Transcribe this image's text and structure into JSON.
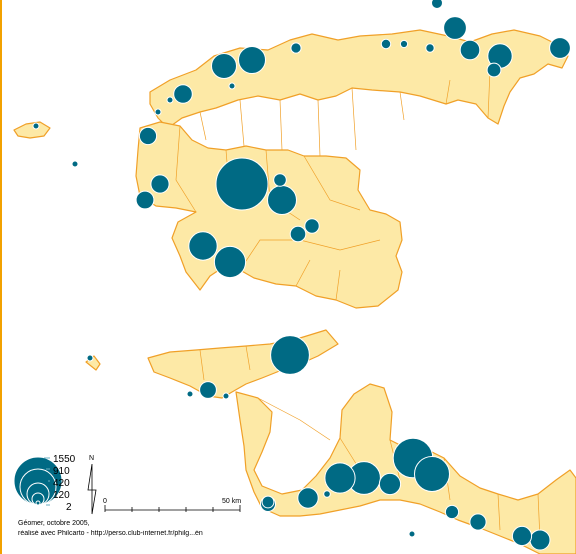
{
  "legend": {
    "values": [
      "1550",
      "910",
      "420",
      "120",
      "2"
    ],
    "color": "#006a84"
  },
  "north_arrow": {
    "label": "N"
  },
  "scale_bar": {
    "start_label": "0",
    "end_label": "50 km"
  },
  "credits": {
    "line1": "Géomer, octobre 2005,",
    "line2": "réalisé avec Philcarto - http://perso.club-internet.fr/philg...én"
  },
  "colors": {
    "land": "#fde9a6",
    "border": "#f0a028",
    "symbol": "#006a84",
    "frame": "#f2a100"
  },
  "bubbles": [
    {
      "name": "bubble-01",
      "v": 1550
    },
    {
      "name": "bubble-02",
      "v": 900
    },
    {
      "name": "bubble-03",
      "v": 860
    },
    {
      "name": "bubble-04",
      "v": 700
    },
    {
      "name": "bubble-05",
      "v": 620
    },
    {
      "name": "bubble-06",
      "v": 560
    },
    {
      "name": "bubble-07",
      "v": 520
    },
    {
      "name": "bubble-08",
      "v": 480
    },
    {
      "name": "bubble-09",
      "v": 460
    },
    {
      "name": "bubble-10",
      "v": 420
    },
    {
      "name": "bubble-11",
      "v": 360
    },
    {
      "name": "bubble-12",
      "v": 340
    },
    {
      "name": "bubble-13",
      "v": 300
    },
    {
      "name": "bubble-14",
      "v": 260
    },
    {
      "name": "bubble-15",
      "v": 250
    },
    {
      "name": "bubble-16",
      "v": 240
    },
    {
      "name": "bubble-17",
      "v": 230
    },
    {
      "name": "bubble-18",
      "v": 220
    },
    {
      "name": "bubble-19",
      "v": 210
    },
    {
      "name": "bubble-20",
      "v": 200
    },
    {
      "name": "bubble-21",
      "v": 190
    },
    {
      "name": "bubble-22",
      "v": 180
    },
    {
      "name": "bubble-23",
      "v": 170
    },
    {
      "name": "bubble-24",
      "v": 160
    },
    {
      "name": "bubble-25",
      "v": 150
    },
    {
      "name": "bubble-26",
      "v": 140
    },
    {
      "name": "bubble-27",
      "v": 130
    },
    {
      "name": "bubble-28",
      "v": 120
    },
    {
      "name": "bubble-29",
      "v": 110
    },
    {
      "name": "bubble-30",
      "v": 100
    },
    {
      "name": "bubble-31",
      "v": 90
    },
    {
      "name": "bubble-32",
      "v": 80
    },
    {
      "name": "bubble-33",
      "v": 70
    },
    {
      "name": "bubble-34",
      "v": 60
    },
    {
      "name": "bubble-35",
      "v": 50
    },
    {
      "name": "bubble-36",
      "v": 40
    },
    {
      "name": "bubble-37",
      "v": 30
    },
    {
      "name": "bubble-38",
      "v": 25
    },
    {
      "name": "bubble-39",
      "v": 20
    },
    {
      "name": "bubble-40",
      "v": 15
    },
    {
      "name": "bubble-41",
      "v": 10
    },
    {
      "name": "bubble-42",
      "v": 8
    },
    {
      "name": "bubble-43",
      "v": 6
    },
    {
      "name": "bubble-44",
      "v": 5
    },
    {
      "name": "bubble-45",
      "v": 4
    },
    {
      "name": "bubble-46",
      "v": 3
    },
    {
      "name": "bubble-47",
      "v": 2
    }
  ]
}
